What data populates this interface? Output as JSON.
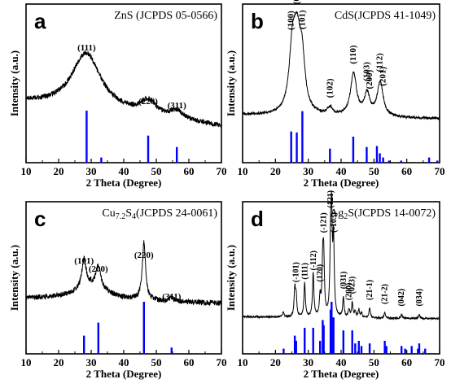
{
  "chart_data": [
    {
      "type": "line",
      "panel_letter": "a",
      "reference": "ZnS (JCPDS 05-0566)",
      "xlabel": "2 Theta (Degree)",
      "ylabel": "Intensity (a.u.)",
      "xlim": [
        10,
        70
      ],
      "x_ticks": [
        "10",
        "20",
        "30",
        "40",
        "50",
        "60",
        "70"
      ],
      "peak_labels": [
        {
          "text": "(111)",
          "x": 28.6
        },
        {
          "text": "(220)",
          "x": 47.5
        },
        {
          "text": "(311)",
          "x": 56.3
        }
      ],
      "reference_lines": [
        {
          "x": 28.6,
          "rel": 1.0
        },
        {
          "x": 33.1,
          "rel": 0.1
        },
        {
          "x": 47.5,
          "rel": 0.52
        },
        {
          "x": 56.3,
          "rel": 0.3
        }
      ],
      "pattern_peaks": [
        {
          "x": 28.5,
          "amp": 0.56,
          "width": 5.5
        },
        {
          "x": 47.5,
          "amp": 0.14,
          "width": 3.0
        },
        {
          "x": 56.3,
          "amp": 0.08,
          "width": 2.5
        }
      ],
      "baseline": [
        0.33,
        0.1
      ],
      "colors": {
        "line": "#000000",
        "reference": "#0000ff"
      }
    },
    {
      "type": "line",
      "panel_letter": "b",
      "reference": "CdS(JCPDS 41-1049)",
      "xlabel": "2 Theta (Degree)",
      "ylabel": "Intensity (a.u.)",
      "xlim": [
        10,
        70
      ],
      "x_ticks": [
        "10",
        "20",
        "30",
        "40",
        "50",
        "60",
        "70"
      ],
      "peak_labels": [
        {
          "text": "(100)",
          "x": 24.8,
          "rotated": true
        },
        {
          "text": "(002)",
          "x": 26.5,
          "rotated": true
        },
        {
          "text": "(101)",
          "x": 28.2,
          "rotated": true
        },
        {
          "text": "(102)",
          "x": 36.6,
          "rotated": true
        },
        {
          "text": "(110)",
          "x": 43.7,
          "rotated": true
        },
        {
          "text": "(103)",
          "x": 47.8,
          "rotated": true
        },
        {
          "text": "(200)",
          "x": 48.7,
          "rotated": true
        },
        {
          "text": "(112)",
          "x": 51.8,
          "rotated": true
        },
        {
          "text": "(201)",
          "x": 52.8,
          "rotated": true
        }
      ],
      "reference_lines": [
        {
          "x": 24.8,
          "rel": 0.6
        },
        {
          "x": 26.5,
          "rel": 0.58
        },
        {
          "x": 28.2,
          "rel": 0.99
        },
        {
          "x": 36.6,
          "rel": 0.27
        },
        {
          "x": 43.7,
          "rel": 0.5
        },
        {
          "x": 47.8,
          "rel": 0.3
        },
        {
          "x": 50.9,
          "rel": 0.32
        },
        {
          "x": 51.8,
          "rel": 0.18
        },
        {
          "x": 52.8,
          "rel": 0.1
        },
        {
          "x": 54.6,
          "rel": 0.04
        },
        {
          "x": 58.3,
          "rel": 0.04
        },
        {
          "x": 66.8,
          "rel": 0.1
        },
        {
          "x": 69.3,
          "rel": 0.04
        }
      ],
      "pattern_peaks": [
        {
          "x": 25.2,
          "amp": 0.62,
          "width": 1.2
        },
        {
          "x": 26.6,
          "amp": 0.62,
          "width": 1.2
        },
        {
          "x": 28.1,
          "amp": 0.5,
          "width": 1.1
        },
        {
          "x": 36.6,
          "amp": 0.07,
          "width": 1.0
        },
        {
          "x": 43.8,
          "amp": 0.43,
          "width": 1.1
        },
        {
          "x": 47.9,
          "amp": 0.22,
          "width": 1.0
        },
        {
          "x": 51.9,
          "amp": 0.35,
          "width": 1.1
        }
      ],
      "baseline": [
        0.14,
        0.1
      ],
      "colors": {
        "line": "#000000",
        "reference": "#0000ff"
      }
    },
    {
      "type": "line",
      "panel_letter": "c",
      "reference": "Cu7.2S4(JCPDS 24-0061)",
      "reference_parts": {
        "element1": "Cu",
        "subscript1": "7.2",
        "element2": "S",
        "subscript2": "4",
        "code": "(JCPDS 24-0061)"
      },
      "xlabel": "2 Theta (Degree)",
      "ylabel": "Intensity (a.u.)",
      "xlim": [
        10,
        70
      ],
      "x_ticks": [
        "10",
        "20",
        "30",
        "40",
        "50",
        "60",
        "70"
      ],
      "peak_labels": [
        {
          "text": "(101)",
          "x": 27.8
        },
        {
          "text": "(200)",
          "x": 32.2
        },
        {
          "text": "(220)",
          "x": 46.2
        },
        {
          "text": "(311)",
          "x": 54.7
        }
      ],
      "reference_lines": [
        {
          "x": 27.8,
          "rel": 0.35
        },
        {
          "x": 32.2,
          "rel": 0.6
        },
        {
          "x": 46.2,
          "rel": 1.0
        },
        {
          "x": 54.7,
          "rel": 0.12
        }
      ],
      "pattern_peaks": [
        {
          "x": 27.8,
          "amp": 0.35,
          "width": 0.8
        },
        {
          "x": 32.2,
          "amp": 0.27,
          "width": 0.9
        },
        {
          "x": 46.2,
          "amp": 0.7,
          "width": 0.6
        },
        {
          "x": 54.7,
          "amp": 0.05,
          "width": 0.8
        },
        {
          "x": 30.0,
          "amp": 0.17,
          "width": 6.0
        }
      ],
      "baseline": [
        0.11,
        0.05
      ],
      "colors": {
        "line": "#000000",
        "reference": "#0000ff"
      }
    },
    {
      "type": "line",
      "panel_letter": "d",
      "reference": "Ag2S(JCPDS 14-0072)",
      "reference_parts": {
        "element1": "Ag",
        "subscript1": "2",
        "element2": "S",
        "code": "(JCPDS 14-0072)"
      },
      "xlabel": "2 Theta (Degree)",
      "ylabel": "Intensity (a.u.)",
      "xlim": [
        10,
        70
      ],
      "x_ticks": [
        "10",
        "20",
        "30",
        "40",
        "50",
        "60",
        "70"
      ],
      "peak_labels": [
        {
          "text": "(-101)",
          "x": 26.3,
          "rotated": true
        },
        {
          "text": "(111)",
          "x": 29.0,
          "rotated": true
        },
        {
          "text": "(-112)",
          "x": 31.6,
          "rotated": true
        },
        {
          "text": "(120)",
          "x": 33.6,
          "rotated": true
        },
        {
          "text": "(-121)",
          "x": 34.7,
          "rotated": true
        },
        {
          "text": "(121)",
          "x": 36.8,
          "rotated": true
        },
        {
          "text": "(-103)",
          "x": 37.8,
          "rotated": true
        },
        {
          "text": "(031)",
          "x": 40.7,
          "rotated": true
        },
        {
          "text": "(200)",
          "x": 42.4,
          "rotated": true
        },
        {
          "text": "(023)",
          "x": 43.4,
          "rotated": true
        },
        {
          "text": "(21-1)",
          "x": 48.7,
          "rotated": true
        },
        {
          "text": "(21-2)",
          "x": 53.3,
          "rotated": true
        },
        {
          "text": "(042)",
          "x": 58.4,
          "rotated": true
        },
        {
          "text": "(034)",
          "x": 63.8,
          "rotated": true
        }
      ],
      "reference_lines": [
        {
          "x": 22.5,
          "rel": 0.1
        },
        {
          "x": 25.9,
          "rel": 0.35
        },
        {
          "x": 26.3,
          "rel": 0.25
        },
        {
          "x": 28.9,
          "rel": 0.5
        },
        {
          "x": 31.5,
          "rel": 0.5
        },
        {
          "x": 33.6,
          "rel": 0.25
        },
        {
          "x": 34.4,
          "rel": 0.65
        },
        {
          "x": 34.7,
          "rel": 0.55
        },
        {
          "x": 36.8,
          "rel": 0.85
        },
        {
          "x": 37.1,
          "rel": 1.0
        },
        {
          "x": 37.7,
          "rel": 0.7
        },
        {
          "x": 40.7,
          "rel": 0.45
        },
        {
          "x": 43.4,
          "rel": 0.45
        },
        {
          "x": 44.3,
          "rel": 0.2
        },
        {
          "x": 45.4,
          "rel": 0.25
        },
        {
          "x": 46.2,
          "rel": 0.15
        },
        {
          "x": 48.7,
          "rel": 0.2
        },
        {
          "x": 53.3,
          "rel": 0.25
        },
        {
          "x": 53.8,
          "rel": 0.15
        },
        {
          "x": 58.4,
          "rel": 0.15
        },
        {
          "x": 59.5,
          "rel": 0.1
        },
        {
          "x": 61.5,
          "rel": 0.15
        },
        {
          "x": 63.4,
          "rel": 0.1
        },
        {
          "x": 63.8,
          "rel": 0.2
        },
        {
          "x": 65.6,
          "rel": 0.1
        }
      ],
      "pattern_peaks": [
        {
          "x": 22.4,
          "amp": 0.05,
          "width": 0.25
        },
        {
          "x": 25.9,
          "amp": 0.28,
          "width": 0.25
        },
        {
          "x": 26.3,
          "amp": 0.2,
          "width": 0.25
        },
        {
          "x": 28.9,
          "amp": 0.35,
          "width": 0.25
        },
        {
          "x": 31.5,
          "amp": 0.45,
          "width": 0.25
        },
        {
          "x": 33.6,
          "amp": 0.2,
          "width": 0.25
        },
        {
          "x": 34.4,
          "amp": 0.5,
          "width": 0.25
        },
        {
          "x": 34.7,
          "amp": 0.55,
          "width": 0.25
        },
        {
          "x": 36.8,
          "amp": 0.6,
          "width": 0.25
        },
        {
          "x": 37.1,
          "amp": 0.92,
          "width": 0.25
        },
        {
          "x": 37.7,
          "amp": 0.75,
          "width": 0.25
        },
        {
          "x": 40.7,
          "amp": 0.2,
          "width": 0.25
        },
        {
          "x": 42.4,
          "amp": 0.08,
          "width": 0.25
        },
        {
          "x": 43.4,
          "amp": 0.15,
          "width": 0.25
        },
        {
          "x": 44.3,
          "amp": 0.06,
          "width": 0.25
        },
        {
          "x": 45.4,
          "amp": 0.08,
          "width": 0.25
        },
        {
          "x": 46.2,
          "amp": 0.05,
          "width": 0.25
        },
        {
          "x": 48.7,
          "amp": 0.1,
          "width": 0.25
        },
        {
          "x": 53.3,
          "amp": 0.06,
          "width": 0.25
        },
        {
          "x": 58.4,
          "amp": 0.04,
          "width": 0.25
        },
        {
          "x": 63.8,
          "amp": 0.04,
          "width": 0.25
        }
      ],
      "baseline": [
        0.03,
        0.01
      ],
      "colors": {
        "line": "#000000",
        "reference": "#0000ff"
      }
    }
  ]
}
